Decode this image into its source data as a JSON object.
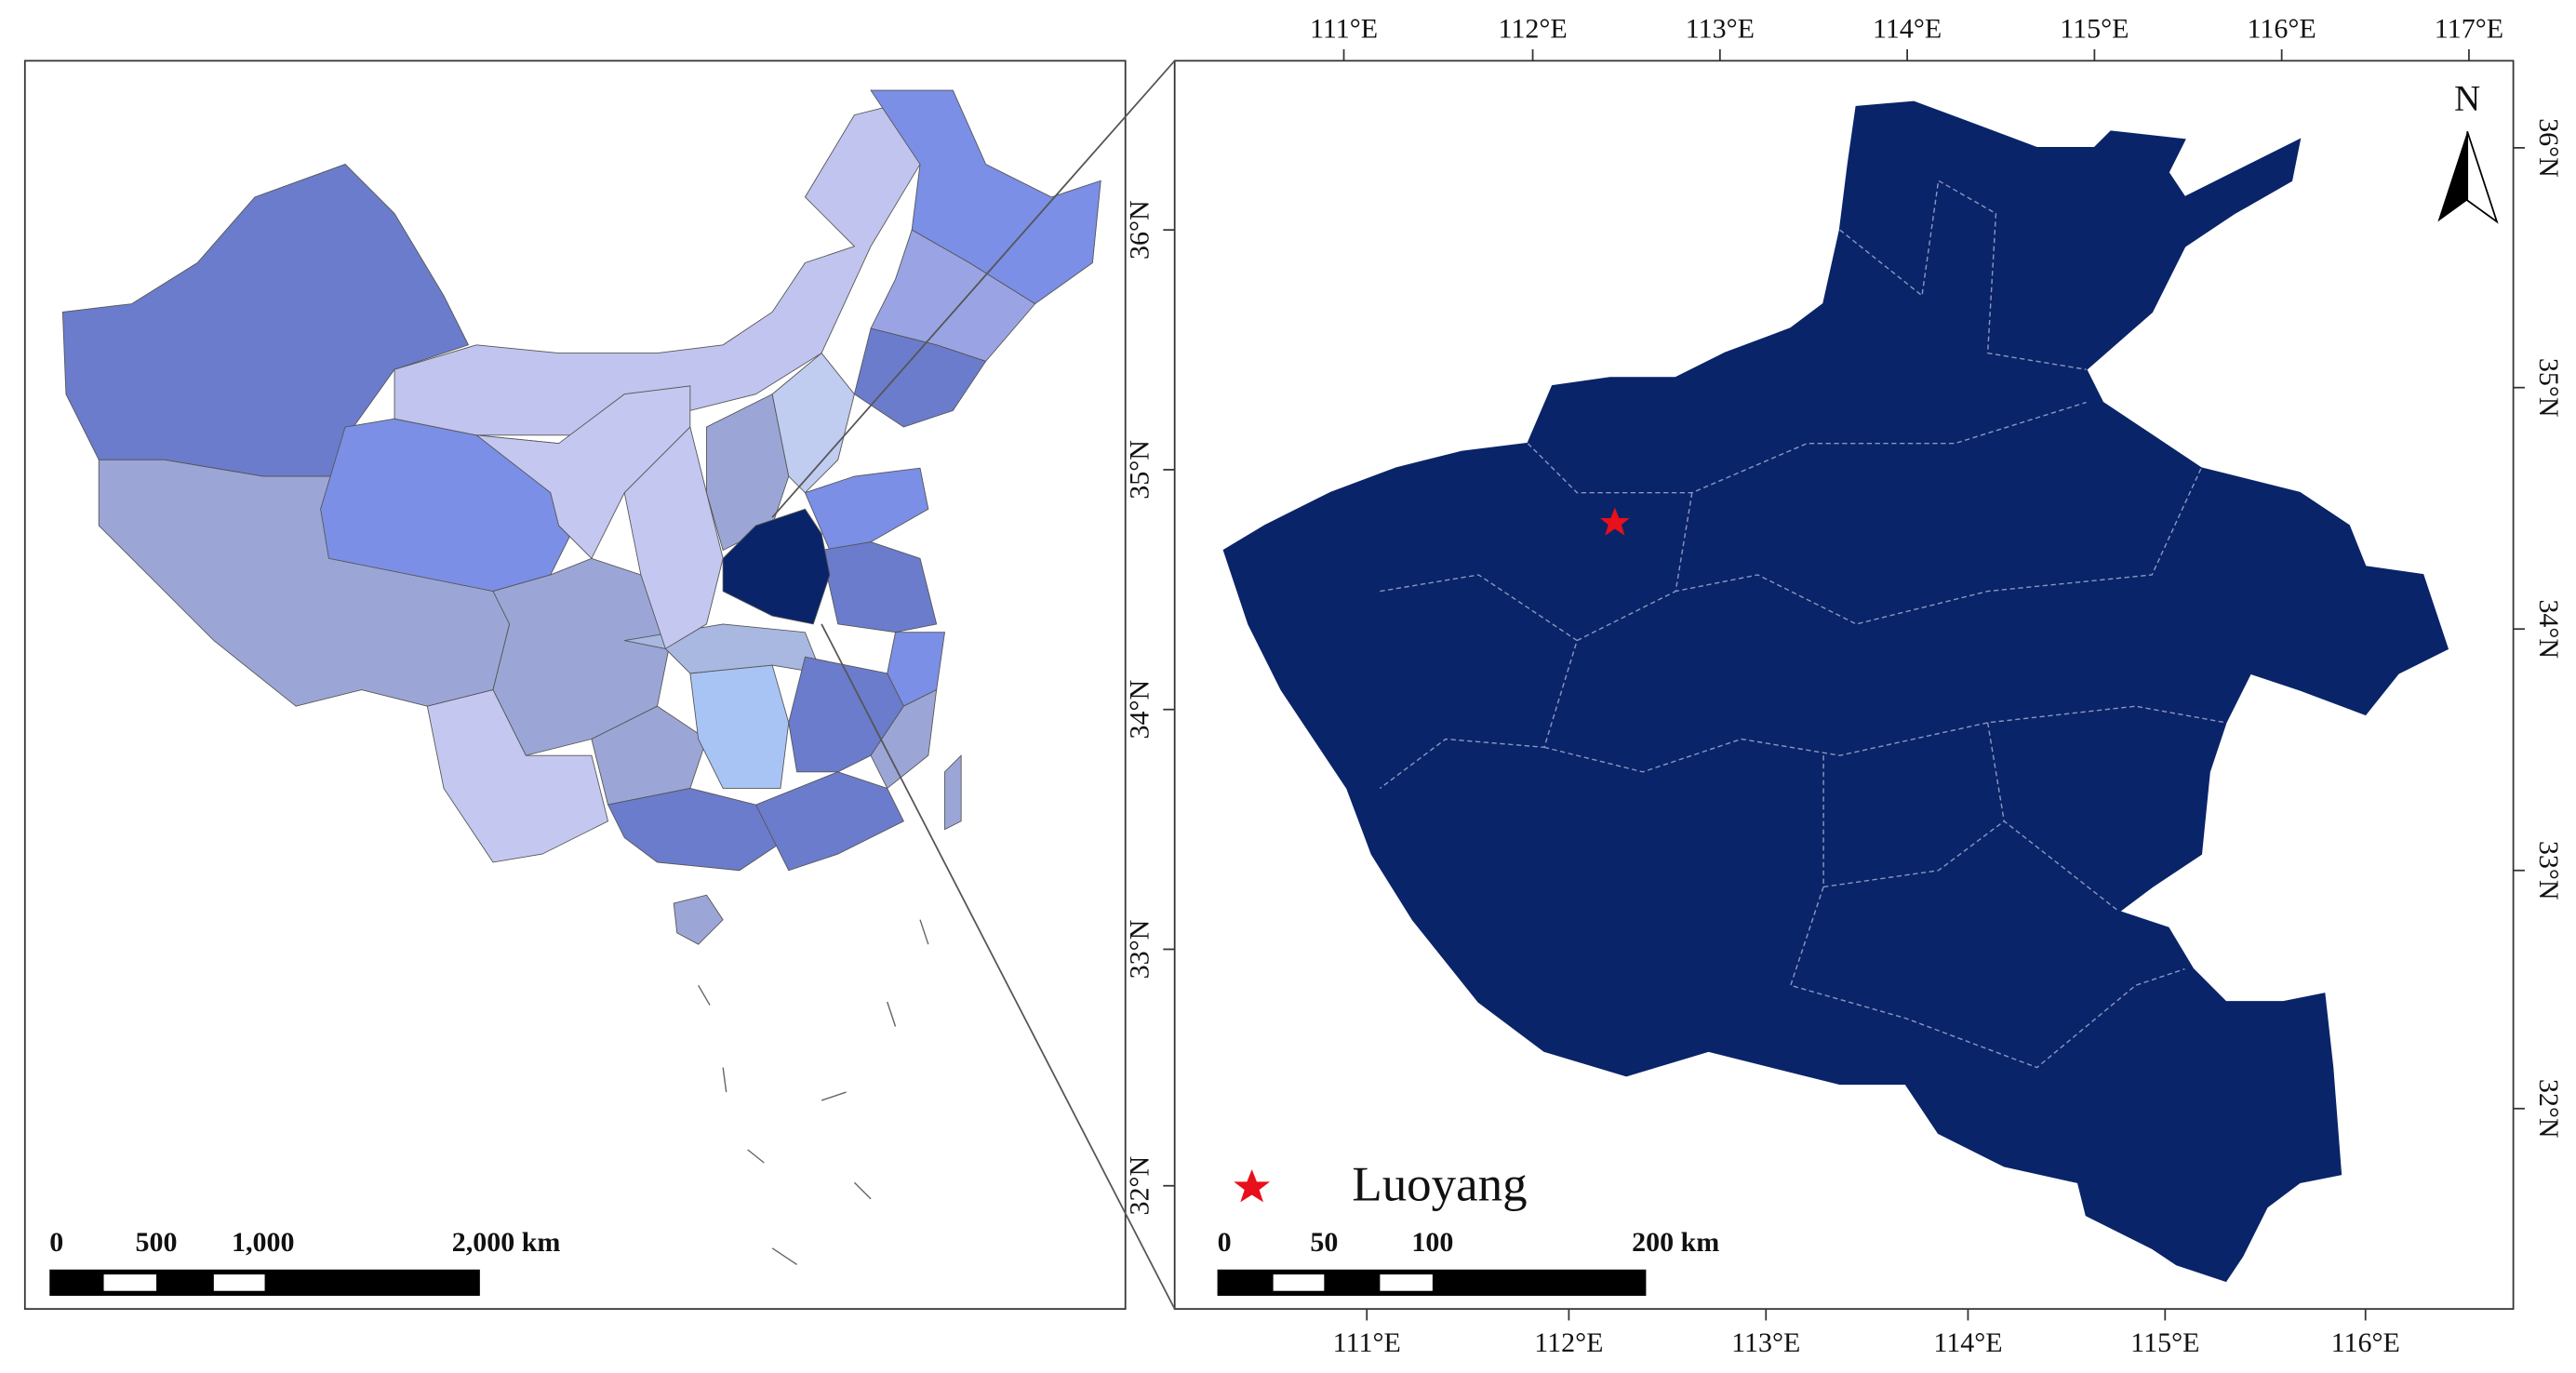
{
  "left_map": {
    "scale_bar": {
      "labels": [
        "0",
        "500",
        "1,000",
        "2,000 km"
      ]
    }
  },
  "right_map": {
    "top_ticks": [
      "111°E",
      "112°E",
      "113°E",
      "114°E",
      "115°E",
      "116°E",
      "117°E"
    ],
    "bottom_ticks": [
      "111°E",
      "112°E",
      "113°E",
      "114°E",
      "115°E",
      "116°E"
    ],
    "left_ticks": [
      "36°N",
      "35°N",
      "34°N",
      "33°N",
      "32°N"
    ],
    "right_ticks": [
      "36°N",
      "35°N",
      "34°N",
      "33°N",
      "32°N"
    ],
    "north_label": "N",
    "legend": {
      "label": "Luoyang"
    },
    "scale_bar": {
      "labels": [
        "0",
        "50",
        "100",
        "200 km"
      ]
    }
  }
}
